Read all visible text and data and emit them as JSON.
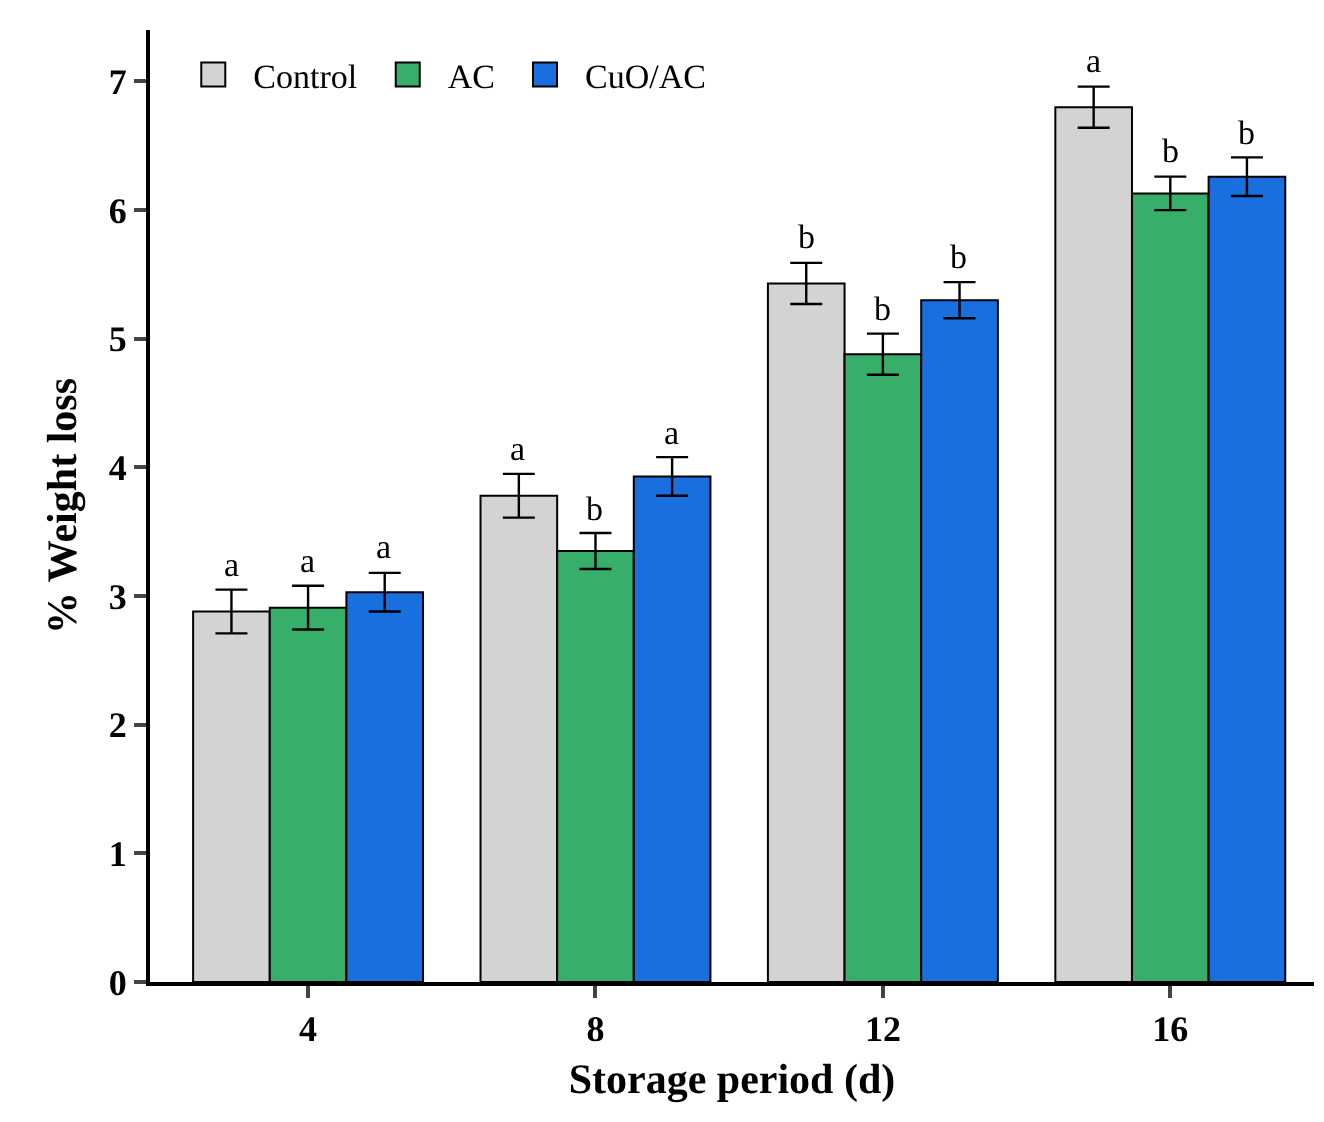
{
  "chart_data": {
    "type": "bar",
    "xlabel": "Storage period (d)",
    "ylabel": "% Weight loss",
    "categories": [
      "4",
      "8",
      "12",
      "16"
    ],
    "series": [
      {
        "name": "Control",
        "color": "#d3d3d3",
        "values": [
          2.88,
          3.78,
          5.43,
          6.8
        ],
        "errors": [
          0.17,
          0.17,
          0.16,
          0.16
        ]
      },
      {
        "name": "AC",
        "color": "#37ae6a",
        "values": [
          2.91,
          3.35,
          4.88,
          6.13
        ],
        "errors": [
          0.17,
          0.14,
          0.16,
          0.13
        ]
      },
      {
        "name": "CuO/AC",
        "color": "#1a6fdf",
        "values": [
          3.03,
          3.93,
          5.3,
          6.26
        ],
        "errors": [
          0.15,
          0.15,
          0.14,
          0.15
        ]
      }
    ],
    "ylim": [
      0,
      7.4
    ],
    "yticks": [
      0,
      1,
      2,
      3,
      4,
      5,
      6,
      7
    ],
    "legend": "top left",
    "annotations": [
      "a",
      "a",
      "b",
      "a",
      "a",
      "b",
      "b",
      "b",
      "a",
      "a",
      "b",
      "b"
    ]
  }
}
